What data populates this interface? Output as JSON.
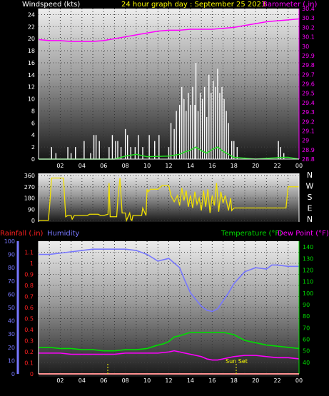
{
  "colors": {
    "background": "#000000",
    "axis": "#ffffff",
    "wind": "#ffffff",
    "wind_gust": "#22dd22",
    "barometer": "#ff00ff",
    "direction": "#f0e000",
    "temperature": "#00dd00",
    "dew_point": "#ff00ff",
    "humidity": "#7777ff",
    "rainfall": "#ff2020",
    "header_date": "#ffff00",
    "sun_marker": "#ffff00"
  },
  "header": {
    "windspeed_label": "Windspeed (kts)",
    "date_label": "24 hour graph day : September 25 2023",
    "barometer_label": "Barometer (.in)"
  },
  "bottom_header": {
    "rainfall_label": "Rainfall (.in)",
    "humidity_label": "Humidity",
    "temperature_label": "Temperature (°F)",
    "dew_point_label": "Dew Point (°F)"
  },
  "annotations": {
    "sun_set": "Sun Set"
  },
  "chart_data": [
    {
      "type": "line",
      "panel": "wind-barometer",
      "xlim": [
        0,
        24
      ],
      "x_tick_labels": [
        "02",
        "04",
        "06",
        "08",
        "10",
        "12",
        "14",
        "16",
        "18",
        "20",
        "22",
        "00"
      ],
      "y_left": {
        "label": "Windspeed (kts)",
        "ylim": [
          0,
          25
        ],
        "ticks": [
          "0",
          "2",
          "4",
          "6",
          "8",
          "10",
          "12",
          "14",
          "16",
          "18",
          "20",
          "22",
          "24"
        ]
      },
      "y_right": {
        "label": "Barometer (.in)",
        "ylim": [
          28.8,
          30.4
        ],
        "ticks": [
          "28.8",
          "28.9",
          "29",
          "29.1",
          "29.2",
          "29.3",
          "29.4",
          "29.5",
          "29.6",
          "29.7",
          "29.8",
          "29.9",
          "30",
          "30.1",
          "30.2",
          "30.3",
          "30.4"
        ]
      },
      "series": [
        {
          "name": "Barometer (.in)",
          "axis": "right",
          "x": [
            0,
            1,
            2,
            3,
            4,
            5,
            6,
            7,
            8,
            9,
            10,
            11,
            12,
            13,
            14,
            15,
            16,
            17,
            18,
            19,
            20,
            21,
            22,
            23,
            24
          ],
          "y": [
            30.07,
            30.06,
            30.06,
            30.05,
            30.05,
            30.05,
            30.06,
            30.08,
            30.1,
            30.12,
            30.14,
            30.16,
            30.17,
            30.17,
            30.18,
            30.18,
            30.18,
            30.19,
            30.2,
            30.22,
            30.24,
            30.26,
            30.27,
            30.28,
            30.29
          ]
        },
        {
          "name": "Windspeed (kts)",
          "axis": "left",
          "x": [
            0.4,
            1.2,
            1.6,
            2.7,
            3.0,
            3.4,
            3.9,
            4.2,
            4.8,
            5.1,
            5.3,
            5.6,
            6.5,
            6.8,
            7.1,
            7.3,
            7.6,
            8.0,
            8.2,
            8.5,
            8.9,
            9.2,
            9.6,
            10.2,
            10.7,
            11.1,
            12.0,
            12.2,
            12.5,
            12.7,
            13.0,
            13.2,
            13.4,
            13.6,
            13.8,
            14.0,
            14.2,
            14.4,
            14.5,
            14.7,
            14.9,
            15.1,
            15.3,
            15.5,
            15.7,
            15.9,
            16.1,
            16.3,
            16.5,
            16.7,
            16.9,
            17.1,
            17.3,
            17.5,
            17.8,
            18.0,
            18.3,
            22.1,
            22.3,
            22.6
          ],
          "y": [
            0,
            2,
            1,
            2,
            1,
            2,
            0,
            3,
            1,
            4,
            4,
            3,
            2,
            4,
            3,
            3,
            2,
            5,
            4,
            2,
            2,
            4,
            2,
            4,
            3,
            4,
            2,
            6,
            5,
            8,
            9,
            12,
            10,
            8,
            11,
            9,
            12,
            9,
            16,
            8,
            11,
            10,
            12,
            7,
            14,
            11,
            13,
            12,
            15,
            11,
            12,
            10,
            8,
            6,
            3,
            3,
            2,
            3,
            2,
            1
          ]
        },
        {
          "name": "Wind Gust (kts)",
          "axis": "left",
          "x": [
            0,
            7.0,
            8.0,
            9.0,
            10.0,
            12.0,
            13.0,
            13.5,
            14.0,
            14.5,
            15.0,
            15.5,
            16.0,
            16.5,
            17.0,
            17.5,
            18.0,
            20,
            22.5,
            23,
            24
          ],
          "y": [
            0,
            0,
            0.5,
            0.8,
            0.4,
            0.5,
            0.8,
            1.2,
            1.5,
            2.0,
            1.4,
            1.0,
            1.6,
            2.0,
            1.3,
            0.8,
            0.3,
            0,
            0.3,
            0.3,
            0
          ]
        }
      ]
    },
    {
      "type": "line",
      "panel": "wind-direction",
      "xlim": [
        0,
        24
      ],
      "y_left": {
        "ylim": [
          0,
          360
        ],
        "ticks": [
          "0",
          "90",
          "180",
          "270",
          "360"
        ]
      },
      "y_right_labels": [
        "N",
        "W",
        "S",
        "E",
        "N"
      ],
      "series": [
        {
          "name": "Wind Direction",
          "x": [
            0,
            0.9,
            1.0,
            1.2,
            1.5,
            2.3,
            2.5,
            2.7,
            3.0,
            3.1,
            3.3,
            4.5,
            4.7,
            5.5,
            5.7,
            6.0,
            6.4,
            6.5,
            6.6,
            7.2,
            7.3,
            7.5,
            7.7,
            8.0,
            8.1,
            8.4,
            8.5,
            8.6,
            8.7,
            9.5,
            9.6,
            9.9,
            10.0,
            10.1,
            10.3,
            10.5,
            11.0,
            11.4,
            11.6,
            12.0,
            12.2,
            12.5,
            12.8,
            13.0,
            13.2,
            13.4,
            13.6,
            13.8,
            14.0,
            14.2,
            14.4,
            14.6,
            14.8,
            15.0,
            15.2,
            15.4,
            15.6,
            15.8,
            16.0,
            16.2,
            16.4,
            16.6,
            16.8,
            17.0,
            17.2,
            17.4,
            17.5,
            17.7,
            17.8,
            18.0,
            22.8,
            23.0,
            23.2,
            24
          ],
          "y": [
            0,
            0,
            90,
            340,
            340,
            340,
            30,
            40,
            40,
            10,
            40,
            40,
            50,
            50,
            40,
            40,
            50,
            300,
            30,
            30,
            160,
            340,
            60,
            60,
            0,
            60,
            10,
            0,
            40,
            40,
            100,
            40,
            250,
            230,
            250,
            250,
            250,
            280,
            280,
            280,
            200,
            150,
            200,
            120,
            260,
            160,
            240,
            110,
            200,
            100,
            230,
            130,
            180,
            80,
            240,
            110,
            250,
            60,
            200,
            120,
            300,
            70,
            230,
            140,
            200,
            120,
            80,
            180,
            80,
            100,
            100,
            270,
            270,
            270
          ]
        }
      ]
    },
    {
      "type": "line",
      "panel": "temperature-humidity",
      "xlim": [
        0,
        24
      ],
      "x_tick_labels": [
        "02",
        "04",
        "06",
        "08",
        "10",
        "12",
        "14",
        "16",
        "18",
        "20",
        "22",
        "00"
      ],
      "y_left_rain": {
        "label": "Rainfall (.in)",
        "ylim": [
          0,
          1.2
        ],
        "ticks": [
          "0",
          "0.1",
          "0.2",
          "0.3",
          "0.4",
          "0.5",
          "0.6",
          "0.7",
          "0.8",
          "0.9",
          "1",
          "1.1"
        ]
      },
      "y_left_humidity": {
        "label": "Humidity",
        "ylim": [
          0,
          100
        ],
        "ticks": [
          "0",
          "10",
          "20",
          "30",
          "40",
          "50",
          "60",
          "70",
          "80",
          "90",
          "100"
        ]
      },
      "y_right": {
        "label": "Temperature (°F)",
        "ylim": [
          30,
          145
        ],
        "ticks": [
          "40",
          "50",
          "60",
          "70",
          "80",
          "90",
          "100",
          "110",
          "120",
          "130",
          "140"
        ]
      },
      "series": [
        {
          "name": "Humidity",
          "axis": "humidity",
          "x": [
            0,
            1,
            2,
            3,
            4,
            5,
            6,
            7,
            8,
            9,
            10,
            11,
            12,
            13,
            13.5,
            14,
            14.5,
            15,
            15.5,
            16,
            16.5,
            17,
            17.5,
            18,
            19,
            20,
            21,
            21.5,
            22,
            23,
            24
          ],
          "y": [
            90,
            90,
            91,
            92,
            93,
            94,
            94,
            94,
            94,
            93,
            90,
            85,
            87,
            80,
            70,
            61,
            56,
            51,
            48,
            47,
            49,
            55,
            61,
            68,
            77,
            80,
            79,
            82,
            82,
            81,
            81
          ]
        },
        {
          "name": "Temperature (°F)",
          "axis": "right",
          "x": [
            0,
            1,
            2,
            3,
            4,
            5,
            6,
            7,
            8,
            9,
            10,
            11,
            11.5,
            12,
            12.5,
            13,
            14,
            15,
            16,
            17,
            18,
            19,
            20,
            21,
            22,
            23,
            24
          ],
          "y": [
            53,
            53,
            52,
            52,
            51,
            51,
            50,
            50,
            51,
            51,
            52,
            55,
            56,
            58,
            62,
            63,
            66,
            66,
            66,
            66,
            64,
            59,
            57,
            55,
            54,
            53,
            52
          ]
        },
        {
          "name": "Dew Point (°F)",
          "axis": "right",
          "x": [
            0,
            1,
            2,
            3,
            4,
            5,
            6,
            7,
            8,
            9,
            10,
            11,
            12,
            12.5,
            13,
            14,
            15,
            15.5,
            16,
            16.5,
            17,
            18,
            19,
            20,
            21,
            22,
            23,
            24
          ],
          "y": [
            48,
            48,
            48,
            47,
            47,
            47,
            47,
            47,
            48,
            48,
            48,
            48,
            49,
            50,
            49,
            47,
            45,
            43,
            42,
            42,
            43,
            45,
            46,
            46,
            45,
            44,
            44,
            43
          ]
        },
        {
          "name": "Rainfall (.in)",
          "axis": "rain",
          "x": [
            0,
            24
          ],
          "y": [
            0,
            0
          ]
        }
      ]
    }
  ]
}
